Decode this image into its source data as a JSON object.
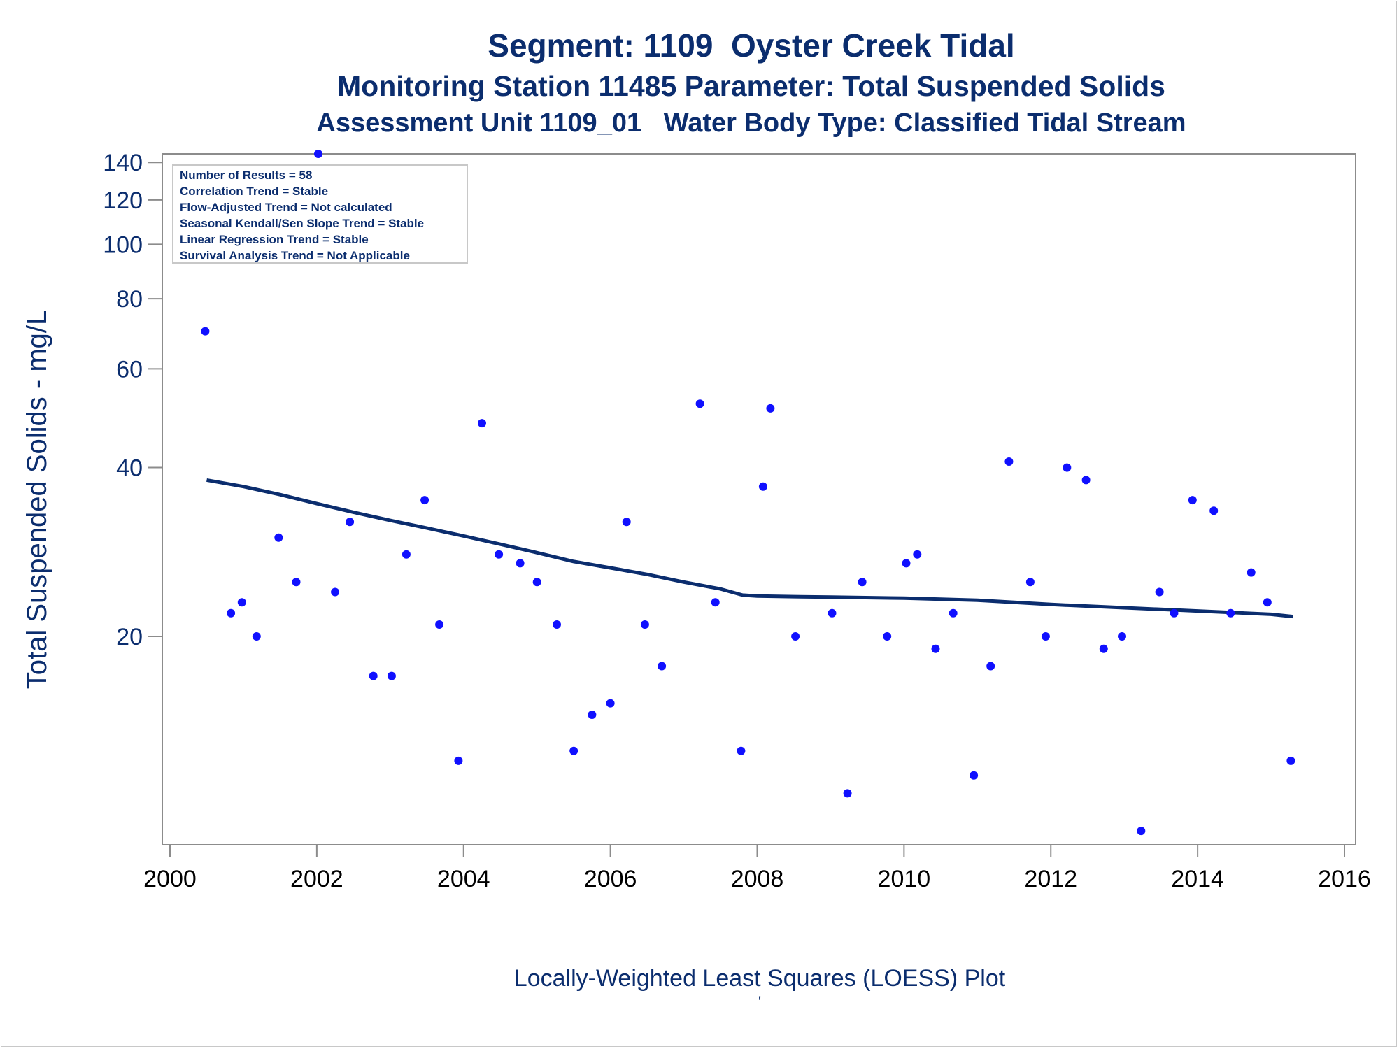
{
  "titles": {
    "line1": "Segment: 1109  Oyster Creek Tidal",
    "line2": "Monitoring Station 11485 Parameter: Total Suspended Solids",
    "line3": "Assessment Unit 1109_01   Water Body Type: Classified Tidal Stream"
  },
  "footnotes": {
    "line1": "Locally-Weighted Least Squares (LOESS) Plot",
    "line2": "'"
  },
  "colors": {
    "points": "#1010ff",
    "loess": "#0b2d6e",
    "text": "#0b2d6e",
    "axis": "#8c8c8c"
  },
  "chart_data": {
    "type": "scatter",
    "xlabel": "",
    "ylabel": "Total Suspended Solids - mg/L",
    "xlim": [
      2000,
      2016
    ],
    "ylim": [
      8.5,
      145
    ],
    "yscale": "log",
    "x_ticks": [
      2000,
      2002,
      2004,
      2006,
      2008,
      2010,
      2012,
      2014,
      2016
    ],
    "y_ticks": [
      20,
      40,
      60,
      80,
      100,
      120,
      140
    ],
    "grid": false,
    "stats_box": [
      "Number of Results = 58",
      "Correlation Trend = Stable",
      "Flow-Adjusted Trend = Not calculated",
      "Seasonal Kendall/Sen Slope Trend = Stable",
      "Linear Regression Trend = Stable",
      "Survival Analysis Trend = Not Applicable"
    ],
    "stats_box_placement": "top-left",
    "series": [
      {
        "type": "scatter",
        "points": [
          [
            2000.48,
            70
          ],
          [
            2000.83,
            22
          ],
          [
            2000.98,
            23
          ],
          [
            2001.18,
            20
          ],
          [
            2001.48,
            30
          ],
          [
            2001.72,
            25
          ],
          [
            2002.02,
            145
          ],
          [
            2002.25,
            24
          ],
          [
            2002.45,
            32
          ],
          [
            2002.77,
            17
          ],
          [
            2003.02,
            17
          ],
          [
            2003.22,
            28
          ],
          [
            2003.47,
            35
          ],
          [
            2003.67,
            21
          ],
          [
            2003.93,
            12
          ],
          [
            2004.25,
            48
          ],
          [
            2004.48,
            28
          ],
          [
            2004.77,
            27
          ],
          [
            2005.0,
            25
          ],
          [
            2005.27,
            21
          ],
          [
            2005.5,
            12.5
          ],
          [
            2005.75,
            14.5
          ],
          [
            2006.0,
            15.2
          ],
          [
            2006.22,
            32
          ],
          [
            2006.47,
            21
          ],
          [
            2006.7,
            17.7
          ],
          [
            2007.22,
            52
          ],
          [
            2007.43,
            23
          ],
          [
            2007.78,
            12.5
          ],
          [
            2008.08,
            37
          ],
          [
            2008.18,
            51
          ],
          [
            2008.52,
            20
          ],
          [
            2009.02,
            22
          ],
          [
            2009.23,
            10.5
          ],
          [
            2009.43,
            25
          ],
          [
            2009.77,
            20
          ],
          [
            2010.03,
            27
          ],
          [
            2010.18,
            28
          ],
          [
            2010.43,
            19
          ],
          [
            2010.67,
            22
          ],
          [
            2010.95,
            11.3
          ],
          [
            2011.18,
            17.7
          ],
          [
            2011.43,
            41
          ],
          [
            2011.72,
            25
          ],
          [
            2011.93,
            20
          ],
          [
            2012.22,
            40
          ],
          [
            2012.48,
            38
          ],
          [
            2012.72,
            19
          ],
          [
            2012.97,
            20
          ],
          [
            2013.23,
            9
          ],
          [
            2013.48,
            24
          ],
          [
            2013.68,
            22
          ],
          [
            2013.93,
            35
          ],
          [
            2014.22,
            33.5
          ],
          [
            2014.45,
            22
          ],
          [
            2014.73,
            26
          ],
          [
            2014.95,
            23
          ],
          [
            2015.27,
            12
          ]
        ]
      },
      {
        "type": "line",
        "points": [
          [
            2000.5,
            38
          ],
          [
            2001.0,
            37
          ],
          [
            2001.5,
            35.8
          ],
          [
            2002.0,
            34.5
          ],
          [
            2002.5,
            33.3
          ],
          [
            2003.0,
            32.2
          ],
          [
            2003.5,
            31.2
          ],
          [
            2004.0,
            30.2
          ],
          [
            2004.5,
            29.2
          ],
          [
            2005.0,
            28.2
          ],
          [
            2005.5,
            27.2
          ],
          [
            2006.0,
            26.5
          ],
          [
            2006.5,
            25.8
          ],
          [
            2007.0,
            25.0
          ],
          [
            2007.5,
            24.3
          ],
          [
            2007.8,
            23.7
          ],
          [
            2008.0,
            23.6
          ],
          [
            2008.5,
            23.55
          ],
          [
            2009.0,
            23.5
          ],
          [
            2010.0,
            23.4
          ],
          [
            2011.0,
            23.2
          ],
          [
            2012.0,
            22.8
          ],
          [
            2013.0,
            22.5
          ],
          [
            2014.0,
            22.2
          ],
          [
            2015.0,
            21.9
          ],
          [
            2015.3,
            21.7
          ]
        ]
      }
    ]
  }
}
